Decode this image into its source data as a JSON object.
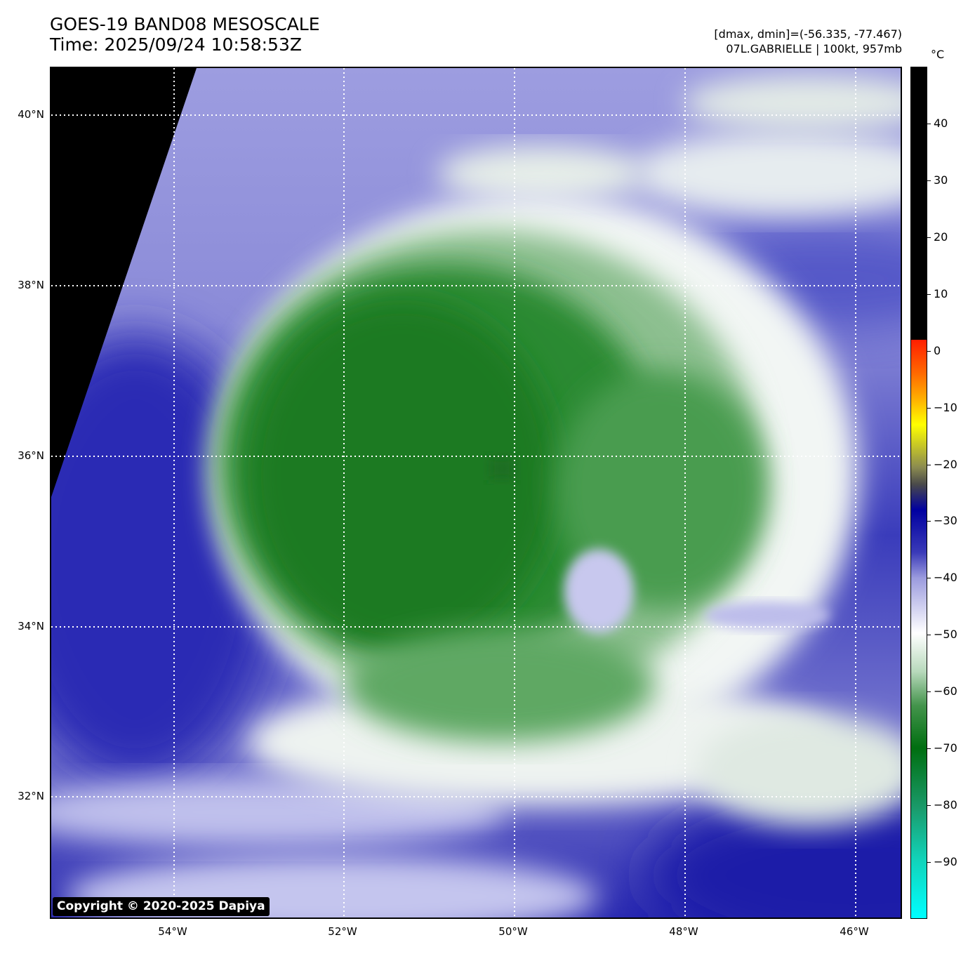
{
  "title": {
    "line1": "GOES-19 BAND08 MESOSCALE",
    "line2": "Time: 2025/09/24 10:58:53Z"
  },
  "info": {
    "range": "[dmax, dmin]=(-56.335, -77.467)",
    "storm": "07L.GABRIELLE | 100kt, 957mb"
  },
  "copyright": "Copyright © 2020-2025 Dapiya",
  "map": {
    "lat_labels": [
      "40°N",
      "38°N",
      "36°N",
      "34°N",
      "32°N"
    ],
    "lon_labels": [
      "54°W",
      "52°W",
      "50°W",
      "48°W",
      "46°W"
    ],
    "gridlines": "dotted white",
    "colors": {
      "background_blue": "#3335b6",
      "cloud_green": "#1f7a25",
      "off_disk": "#000000",
      "cold_fringe": "#ffffff"
    }
  },
  "colorbar": {
    "unit": "°C",
    "ticks": [
      "40",
      "30",
      "20",
      "10",
      "0",
      "−10",
      "−20",
      "−30",
      "−40",
      "−50",
      "−60",
      "−70",
      "−80",
      "−90"
    ],
    "range": [
      -100,
      50
    ]
  }
}
